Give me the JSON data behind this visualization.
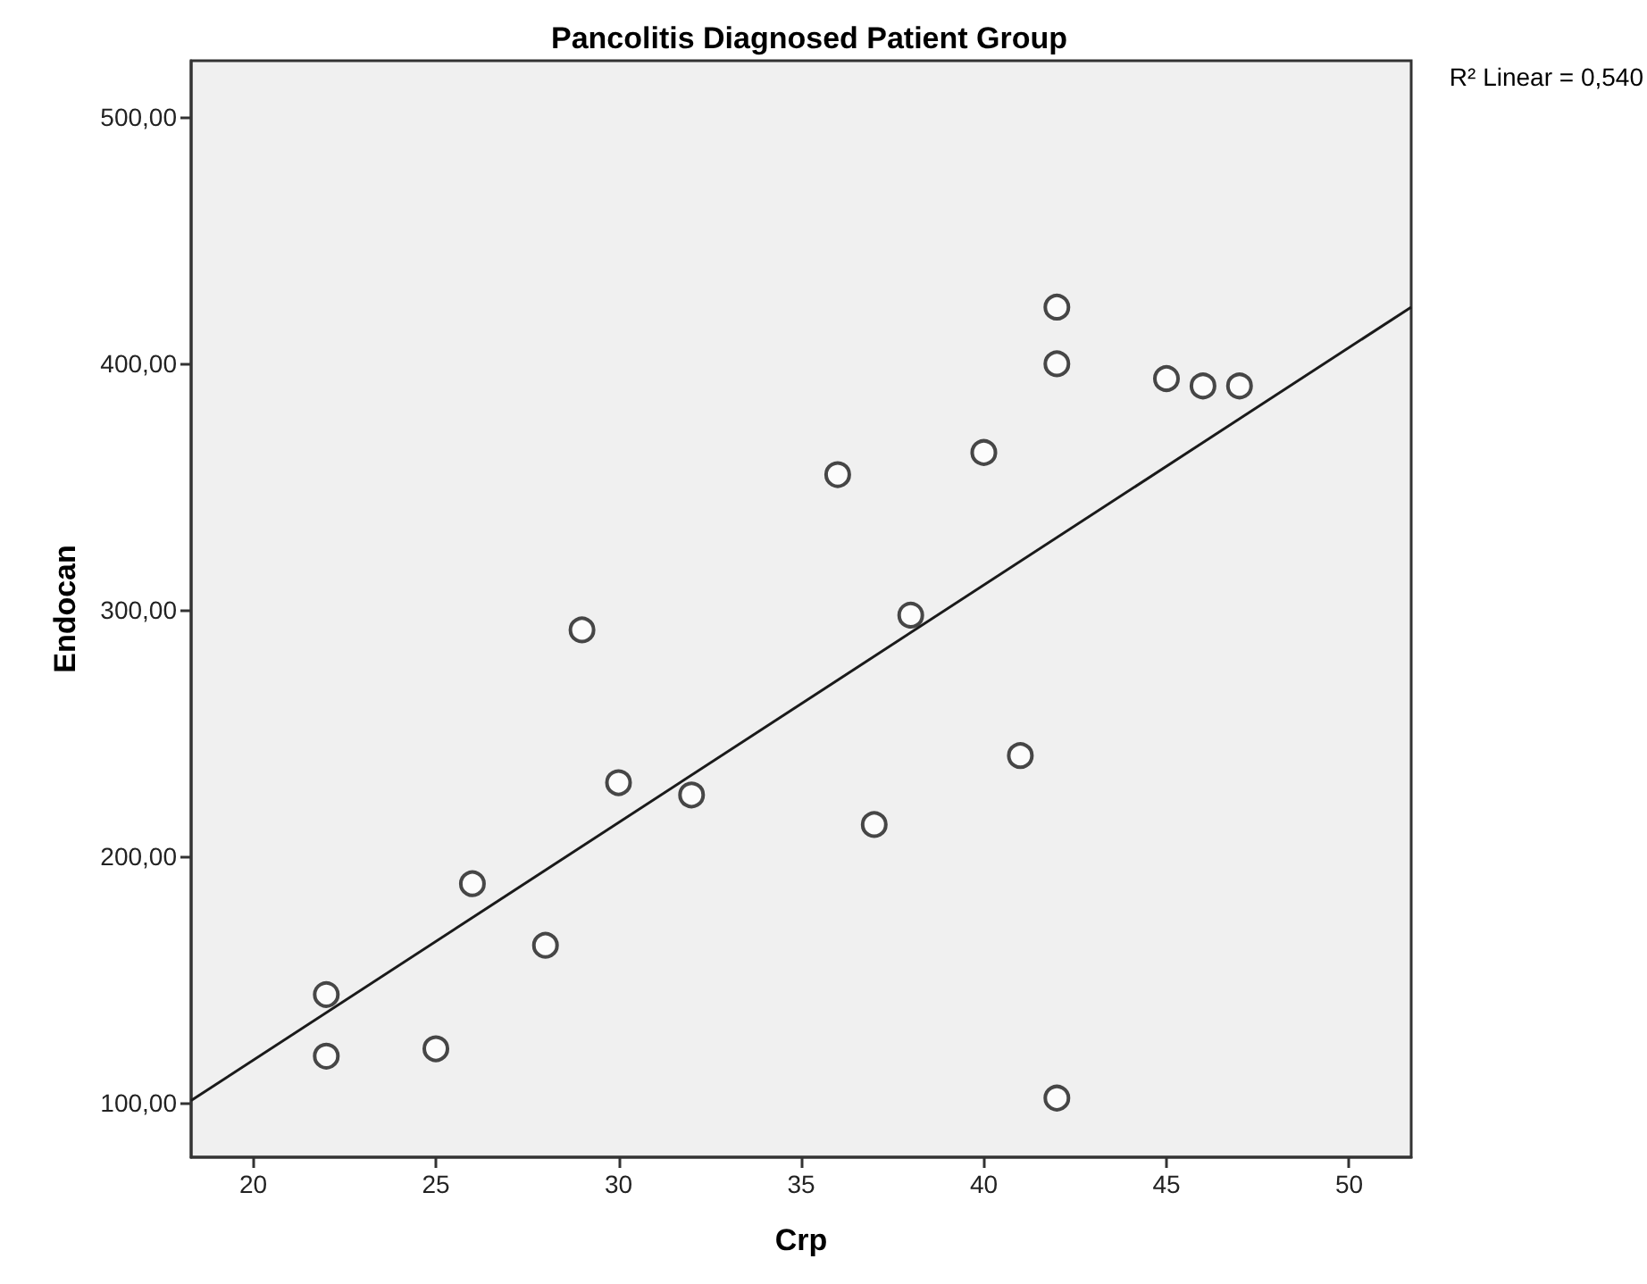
{
  "chart_data": {
    "type": "scatter",
    "title": "Pancolitis Diagnosed Patient Group",
    "xlabel": "Crp",
    "ylabel": "Endocan",
    "annotations": [
      "R² Linear = 0,540"
    ],
    "xlim": [
      18.3,
      51.7
    ],
    "xticks": [
      20,
      25,
      30,
      35,
      40,
      45,
      50
    ],
    "ylim": [
      78,
      523
    ],
    "yticks": [
      {
        "value": 100,
        "label": "100,00"
      },
      {
        "value": 200,
        "label": "200,00"
      },
      {
        "value": 300,
        "label": "300,00"
      },
      {
        "value": 400,
        "label": "400,00"
      },
      {
        "value": 500,
        "label": "500,00"
      }
    ],
    "grid": false,
    "marker": "circle",
    "series": [
      {
        "color": "#1a1a1a",
        "x": [
          22,
          22,
          25,
          26,
          28,
          29,
          30,
          32,
          36,
          37,
          38,
          40,
          41,
          42,
          42,
          42,
          45,
          46,
          47
        ],
        "values": [
          144,
          119,
          122,
          189,
          164,
          292,
          230,
          225,
          355,
          213,
          298,
          364,
          241,
          423,
          400,
          102,
          394,
          391,
          391
        ]
      },
      {
        "type": "line",
        "color": "#1a1a1a",
        "marker": "none",
        "line_style": "solid",
        "x": [
          18.3,
          51.7
        ],
        "values": [
          101,
          423
        ]
      }
    ]
  }
}
